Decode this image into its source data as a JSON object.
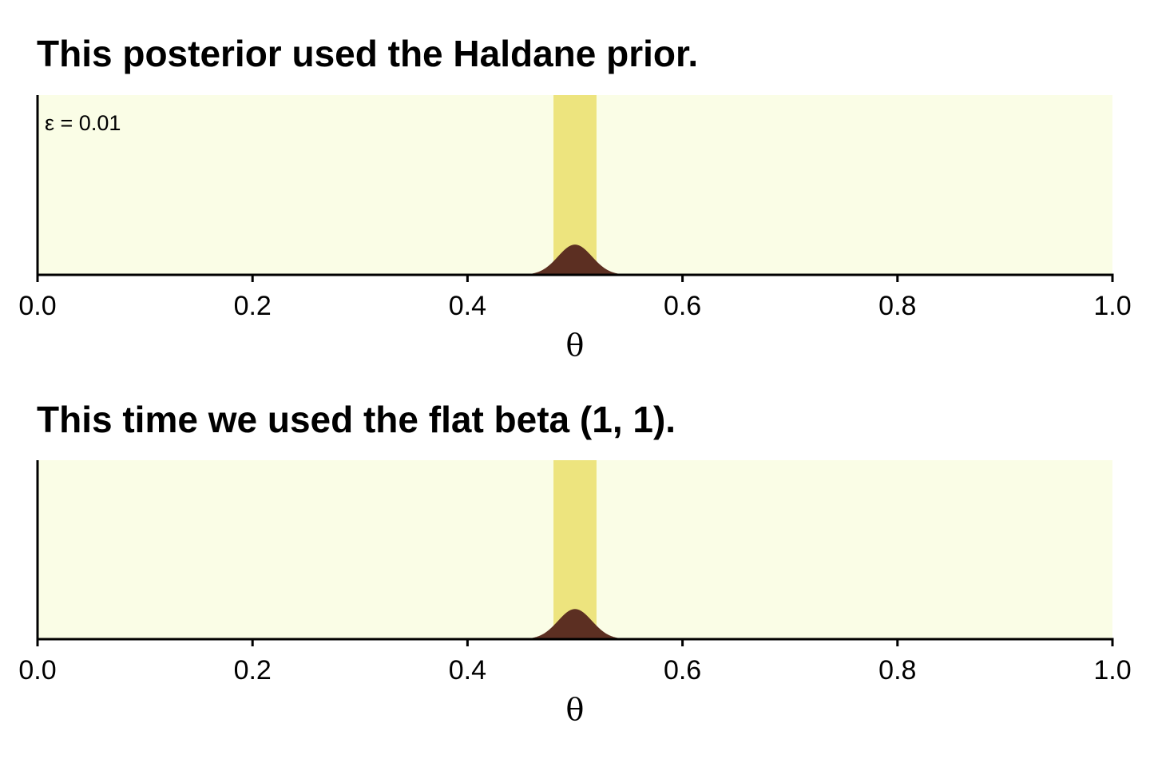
{
  "colors": {
    "panel_background": "#fafde6",
    "interval_band": "#ede47e",
    "density_fill": "#5c2f22",
    "axis": "#000000"
  },
  "chart_data": [
    {
      "type": "area",
      "title": "This posterior used the Haldane prior.",
      "xlabel": "θ",
      "ylabel": "",
      "xlim": [
        0,
        1
      ],
      "ylim": [
        0,
        150
      ],
      "x_ticks": [
        "0.0",
        "0.2",
        "0.4",
        "0.6",
        "0.8",
        "1.0"
      ],
      "annotation": "ε = 0.01",
      "density": {
        "distribution": "beta",
        "alpha": 500,
        "beta": 500
      },
      "interval": [
        0.48,
        0.52
      ],
      "grid": false
    },
    {
      "type": "area",
      "title": "This time we used the flat beta (1, 1).",
      "xlabel": "θ",
      "ylabel": "",
      "xlim": [
        0,
        1
      ],
      "ylim": [
        0,
        150
      ],
      "x_ticks": [
        "0.0",
        "0.2",
        "0.4",
        "0.6",
        "0.8",
        "1.0"
      ],
      "annotation": "",
      "density": {
        "distribution": "beta",
        "alpha": 501,
        "beta": 501
      },
      "interval": [
        0.48,
        0.52
      ],
      "grid": false
    }
  ]
}
